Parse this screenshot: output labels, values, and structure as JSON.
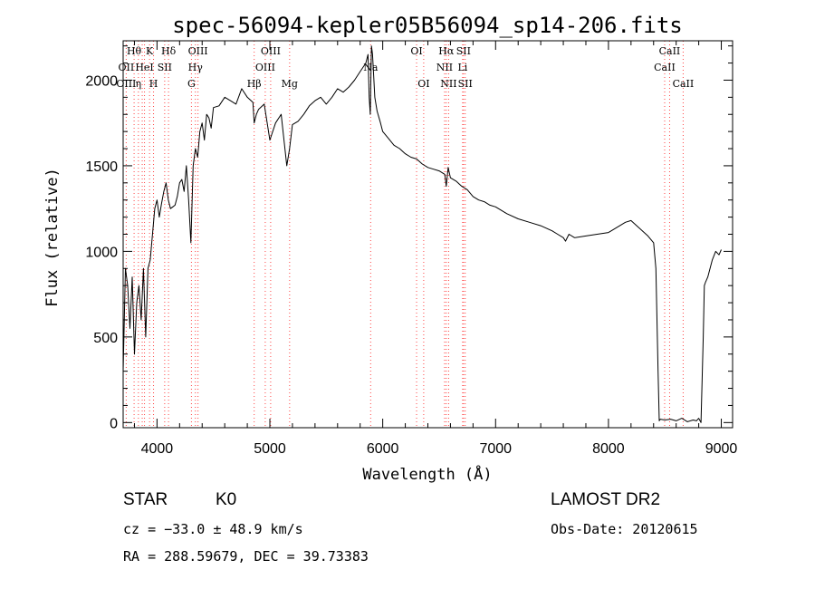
{
  "chart_data": {
    "type": "line",
    "title": "spec-56094-kepler05B56094_sp14-206.fits",
    "xlabel": "Wavelength (Å)",
    "ylabel": "Flux (relative)",
    "xlim": [
      3700,
      9100
    ],
    "ylim": [
      -30,
      2230
    ],
    "x_ticks": [
      4000,
      5000,
      6000,
      7000,
      8000,
      9000
    ],
    "y_ticks": [
      0,
      500,
      1000,
      1500,
      2000
    ],
    "grid": false,
    "series": [
      {
        "name": "flux",
        "x": [
          3700,
          3720,
          3740,
          3760,
          3780,
          3800,
          3820,
          3840,
          3860,
          3880,
          3900,
          3920,
          3940,
          3960,
          3980,
          4000,
          4020,
          4040,
          4060,
          4080,
          4100,
          4120,
          4140,
          4160,
          4180,
          4200,
          4220,
          4240,
          4260,
          4280,
          4300,
          4320,
          4340,
          4360,
          4380,
          4400,
          4420,
          4440,
          4460,
          4480,
          4500,
          4550,
          4600,
          4650,
          4700,
          4750,
          4800,
          4850,
          4861,
          4880,
          4900,
          4950,
          5000,
          5050,
          5100,
          5150,
          5175,
          5200,
          5250,
          5300,
          5350,
          5400,
          5450,
          5500,
          5550,
          5600,
          5650,
          5700,
          5750,
          5800,
          5850,
          5870,
          5880,
          5890,
          5896,
          5900,
          5910,
          5930,
          5950,
          5980,
          6000,
          6050,
          6100,
          6150,
          6200,
          6250,
          6300,
          6350,
          6400,
          6450,
          6500,
          6550,
          6563,
          6580,
          6600,
          6650,
          6700,
          6750,
          6800,
          6850,
          6900,
          6950,
          7000,
          7100,
          7200,
          7300,
          7400,
          7500,
          7550,
          7600,
          7620,
          7650,
          7700,
          7800,
          7900,
          8000,
          8100,
          8150,
          8200,
          8250,
          8300,
          8350,
          8400,
          8420,
          8440,
          8450,
          8460,
          8500,
          8550,
          8600,
          8650,
          8700,
          8750,
          8780,
          8800,
          8820,
          8840,
          8850,
          8860,
          8880,
          8900,
          8920,
          8950,
          8980,
          9000
        ],
        "values": [
          300,
          900,
          800,
          550,
          850,
          400,
          700,
          800,
          600,
          900,
          500,
          900,
          950,
          1100,
          1250,
          1300,
          1200,
          1280,
          1350,
          1400,
          1300,
          1250,
          1260,
          1270,
          1320,
          1400,
          1420,
          1350,
          1500,
          1300,
          1050,
          1500,
          1600,
          1550,
          1700,
          1750,
          1650,
          1800,
          1780,
          1720,
          1840,
          1850,
          1900,
          1880,
          1860,
          1950,
          1900,
          1870,
          1750,
          1800,
          1830,
          1860,
          1650,
          1750,
          1800,
          1500,
          1600,
          1740,
          1760,
          1800,
          1850,
          1880,
          1900,
          1860,
          1900,
          1950,
          1930,
          1960,
          2000,
          2050,
          2100,
          2150,
          1900,
          1800,
          2050,
          2200,
          2150,
          1900,
          1820,
          1750,
          1700,
          1660,
          1620,
          1600,
          1570,
          1550,
          1540,
          1510,
          1490,
          1480,
          1470,
          1450,
          1380,
          1490,
          1430,
          1410,
          1380,
          1360,
          1320,
          1300,
          1290,
          1270,
          1260,
          1220,
          1190,
          1170,
          1150,
          1120,
          1100,
          1080,
          1060,
          1100,
          1080,
          1090,
          1100,
          1110,
          1150,
          1170,
          1180,
          1150,
          1120,
          1090,
          1050,
          900,
          300,
          10,
          20,
          15,
          20,
          10,
          25,
          5,
          15,
          10,
          25,
          0,
          500,
          800,
          820,
          850,
          900,
          950,
          1000,
          980,
          1010
        ]
      }
    ],
    "line_labels": [
      {
        "text": "Hθ",
        "x": 3797,
        "row": 1
      },
      {
        "text": "OII",
        "x": 3727,
        "row": 2
      },
      {
        "text": "OIII",
        "x": 3727,
        "row": 3
      },
      {
        "text": "HeI",
        "x": 3889,
        "row": 2
      },
      {
        "text": "η",
        "x": 3835,
        "row": 3
      },
      {
        "text": "K",
        "x": 3934,
        "row": 1
      },
      {
        "text": "SII",
        "x": 4068,
        "row": 2
      },
      {
        "text": "H",
        "x": 3969,
        "row": 3
      },
      {
        "text": "Hδ",
        "x": 4102,
        "row": 1
      },
      {
        "text": "OIII",
        "x": 4363,
        "row": 1
      },
      {
        "text": "Hγ",
        "x": 4340,
        "row": 2
      },
      {
        "text": "G",
        "x": 4305,
        "row": 3
      },
      {
        "text": "OIII",
        "x": 5007,
        "row": 1
      },
      {
        "text": "OIII",
        "x": 4959,
        "row": 2
      },
      {
        "text": "Hβ",
        "x": 4861,
        "row": 3
      },
      {
        "text": "Mg",
        "x": 5175,
        "row": 3
      },
      {
        "text": "Na",
        "x": 5893,
        "row": 2
      },
      {
        "text": "OI",
        "x": 6300,
        "row": 1
      },
      {
        "text": "OI",
        "x": 6363,
        "row": 3
      },
      {
        "text": "Hα",
        "x": 6563,
        "row": 1
      },
      {
        "text": "SII",
        "x": 6716,
        "row": 1
      },
      {
        "text": "NII",
        "x": 6548,
        "row": 2
      },
      {
        "text": "Li",
        "x": 6708,
        "row": 2
      },
      {
        "text": "NII",
        "x": 6584,
        "row": 3
      },
      {
        "text": "SII",
        "x": 6731,
        "row": 3
      },
      {
        "text": "CaII",
        "x": 8542,
        "row": 1
      },
      {
        "text": "CaII",
        "x": 8498,
        "row": 2
      },
      {
        "text": "CaII",
        "x": 8662,
        "row": 3
      }
    ],
    "marker_lines": [
      3727,
      3797,
      3835,
      3869,
      3889,
      3934,
      3969,
      4068,
      4102,
      4305,
      4340,
      4363,
      4861,
      4959,
      5007,
      5175,
      5893,
      6300,
      6363,
      6548,
      6563,
      6584,
      6708,
      6716,
      6731,
      8498,
      8542,
      8662
    ],
    "colors": {
      "data": "#000000",
      "marker": "#ff4444",
      "axis": "#000000"
    }
  },
  "info": {
    "object_type": "STAR",
    "subclass": "K0",
    "survey": "LAMOST DR2",
    "velocity": "cz = −33.0 ± 48.9 km/s",
    "obs_date": "Obs-Date: 20120615",
    "coords": "RA = 288.59679, DEC =  39.73383"
  }
}
